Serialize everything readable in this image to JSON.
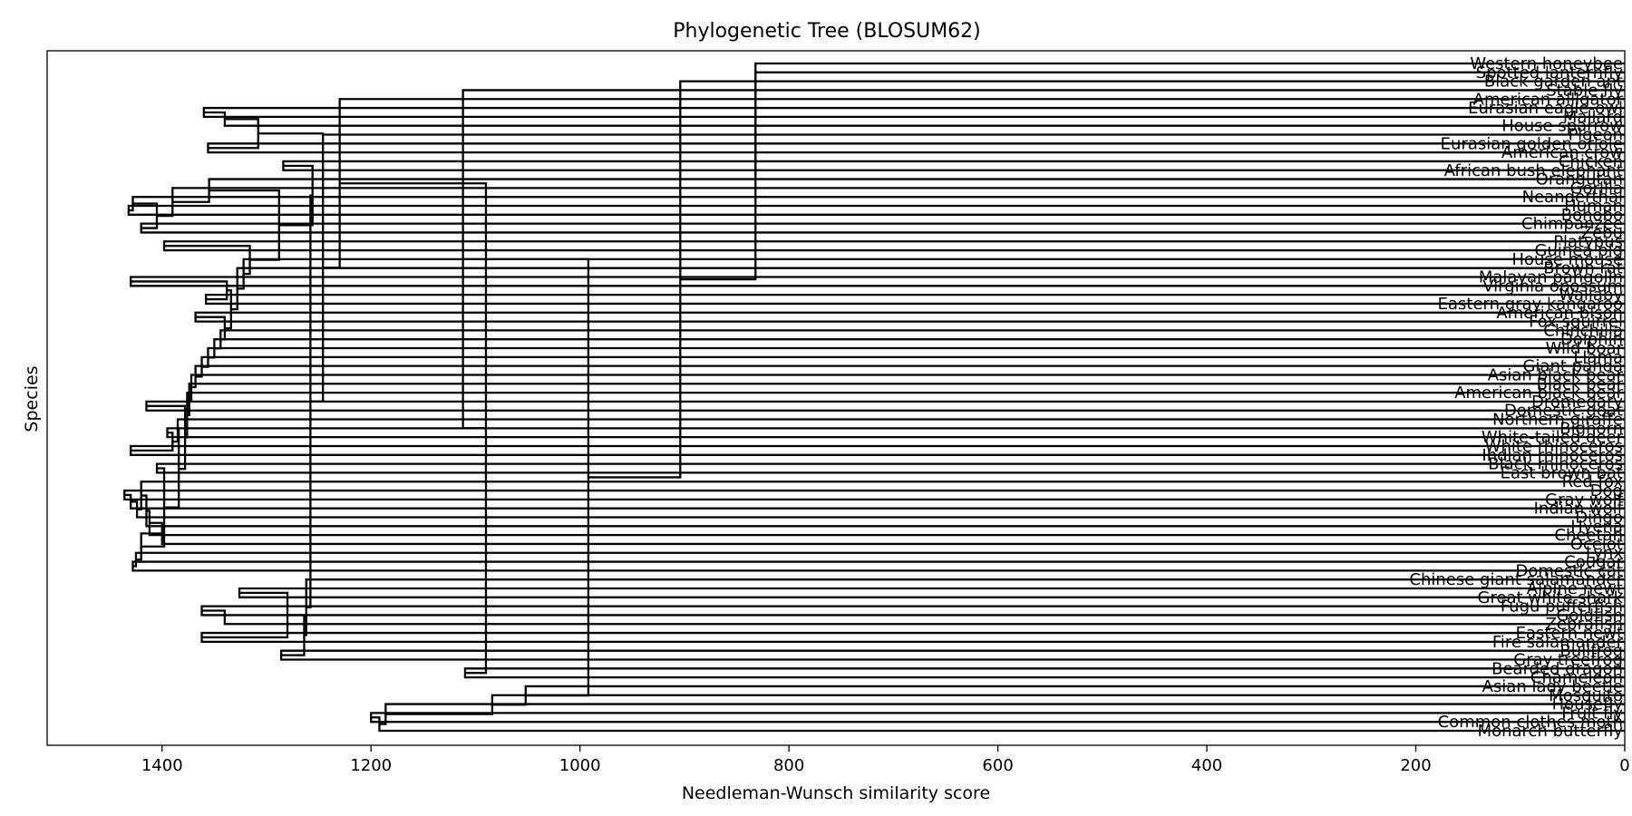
{
  "chart_data": {
    "type": "dendrogram",
    "title": "Phylogenetic Tree (BLOSUM62)",
    "xlabel": "Needleman-Wunsch similarity score",
    "ylabel": "Species",
    "xlim": [
      1510,
      0
    ],
    "x_ticks": [
      1400,
      1200,
      1000,
      800,
      600,
      400,
      200,
      0
    ],
    "orientation": "leaves-right",
    "leaves": [
      "Western honeybee",
      "Spotted lanternfly",
      "Black garden ant",
      "Stable fly",
      "American alligator",
      "Eurasian eagle-owl",
      "Mallard",
      "House sparrow",
      "Pigeon",
      "Eurasian golden oriole",
      "American crow",
      "Chicken",
      "African bush elephant",
      "Orangutan",
      "Gorilla",
      "Neanderthal",
      "Human",
      "Bonobo",
      "Chimpanzee",
      "Zebu",
      "Platypus",
      "Guinea pig",
      "House mouse",
      "Brown rat",
      "Malayan pangolin",
      "Virginia opossum",
      "Wallaby",
      "Eastern gray kangaroo",
      "American bison",
      "Fox squirrel",
      "Chinchilla",
      "Dolphin",
      "Wild boar",
      "Llama",
      "Giant panda",
      "Asian black bear",
      "Black bear",
      "American black bear",
      "Dromedary",
      "Domestic goat",
      "Northern giraffe",
      "Bighorn",
      "White-tailed deer",
      "White rhinoceros",
      "Indian rhinoceros",
      "Black rhinoceros",
      "East brown bat",
      "Red fox",
      "Dog",
      "Gray wolf",
      "Indian wolf",
      "Dingo",
      "Hyena",
      "Cheetah",
      "Ocelot",
      "Lynx",
      "Cougar",
      "Domestic cat",
      "Chinese giant salamander",
      "Alpine newt",
      "Great white shark",
      "Fugu pufferfish",
      "Goldfish",
      "Zebrafish",
      "Eastern newt",
      "Fire salamander",
      "Bullfrog",
      "Gray treefrog",
      "Bearded dragon",
      "Chameleon",
      "Asian lady beetle",
      "Mosquito",
      "Housefly",
      "Fruit fly",
      "Common clothes moth",
      "Monarch butterfly"
    ],
    "merges": [
      {
        "a": "Human",
        "b": "Bonobo",
        "score": 1432
      },
      {
        "a": "Chimpanzee",
        "b": "Zebu",
        "score": 1420
      },
      {
        "a": "Neanderthal",
        "b": "m1",
        "score": 1428
      },
      {
        "a": "m3",
        "b": "m2",
        "score": 1405
      },
      {
        "a": "Gorilla",
        "b": "m4",
        "score": 1390
      },
      {
        "a": "Orangutan",
        "b": "m5",
        "score": 1355
      },
      {
        "a": "Dog",
        "b": "Gray wolf",
        "score": 1436
      },
      {
        "a": "m7",
        "b": "Indian wolf",
        "score": 1430
      },
      {
        "a": "m8",
        "b": "Dingo",
        "score": 1424
      },
      {
        "a": "Red fox",
        "b": "m9",
        "score": 1420
      },
      {
        "a": "m10",
        "b": "Hyena",
        "score": 1415
      },
      {
        "a": "m11",
        "b": "Cheetah",
        "score": 1412
      },
      {
        "a": "m12",
        "b": "Ocelot",
        "score": 1400
      },
      {
        "a": "Cougar",
        "b": "Domestic cat",
        "score": 1428
      },
      {
        "a": "Lynx",
        "b": "m14",
        "score": 1425
      },
      {
        "a": "m13",
        "b": "m15",
        "score": 1420
      },
      {
        "a": "Black rhinoceros",
        "b": "East brown bat",
        "score": 1405
      },
      {
        "a": "m17",
        "b": "m16",
        "score": 1398
      },
      {
        "a": "White rhinoceros",
        "b": "Indian rhinoceros",
        "score": 1430
      },
      {
        "a": "Bighorn",
        "b": "White-tailed deer",
        "score": 1395
      },
      {
        "a": "m20",
        "b": "m19",
        "score": 1390
      },
      {
        "a": "Northern giraffe",
        "b": "m21",
        "score": 1385
      },
      {
        "a": "m22",
        "b": "m18",
        "score": 1384
      },
      {
        "a": "Dromedary",
        "b": "Domestic goat",
        "score": 1415
      },
      {
        "a": "m24",
        "b": "m23",
        "score": 1378
      },
      {
        "a": "American black bear",
        "b": "m25",
        "score": 1376
      },
      {
        "a": "Black bear",
        "b": "m26",
        "score": 1374
      },
      {
        "a": "Asian black bear",
        "b": "m27",
        "score": 1372
      },
      {
        "a": "Giant panda",
        "b": "m28",
        "score": 1368
      },
      {
        "a": "Llama",
        "b": "m29",
        "score": 1362
      },
      {
        "a": "Wild boar",
        "b": "m30",
        "score": 1356
      },
      {
        "a": "Dolphin",
        "b": "m31",
        "score": 1350
      },
      {
        "a": "Chinchilla",
        "b": "m32",
        "score": 1344
      },
      {
        "a": "American bison",
        "b": "Fox squirrel",
        "score": 1368
      },
      {
        "a": "m34",
        "b": "m33",
        "score": 1340
      },
      {
        "a": "Malayan pangolin",
        "b": "Virginia opossum",
        "score": 1430
      },
      {
        "a": "Wallaby",
        "b": "Eastern gray kangaroo",
        "score": 1358
      },
      {
        "a": "m36",
        "b": "m37",
        "score": 1338
      },
      {
        "a": "m38",
        "b": "m35",
        "score": 1334
      },
      {
        "a": "Brown rat",
        "b": "m39",
        "score": 1328
      },
      {
        "a": "House mouse",
        "b": "m40",
        "score": 1322
      },
      {
        "a": "Platypus",
        "b": "Guinea pig",
        "score": 1398
      },
      {
        "a": "m42",
        "b": "m41",
        "score": 1316
      },
      {
        "a": "m6",
        "b": "m43",
        "score": 1288
      },
      {
        "a": "Eurasian eagle-owl",
        "b": "Mallard",
        "score": 1360
      },
      {
        "a": "m45",
        "b": "House sparrow",
        "score": 1340
      },
      {
        "a": "Eurasian golden oriole",
        "b": "American crow",
        "score": 1356
      },
      {
        "a": "m46",
        "b": "m47",
        "score": 1308
      },
      {
        "a": "m48",
        "b": "Pigeon",
        "score": 1246
      },
      {
        "a": "Chicken",
        "b": "African bush elephant",
        "score": 1284
      },
      {
        "a": "m44",
        "b": "m50",
        "score": 1256
      },
      {
        "a": "Fugu pufferfish",
        "b": "Goldfish",
        "score": 1362
      },
      {
        "a": "m52",
        "b": "Zebrafish",
        "score": 1340
      },
      {
        "a": "Alpine newt",
        "b": "Great white shark",
        "score": 1326
      },
      {
        "a": "Eastern newt",
        "b": "Fire salamander",
        "score": 1362
      },
      {
        "a": "m55",
        "b": "m54",
        "score": 1280
      },
      {
        "a": "Bullfrog",
        "b": "Gray treefrog",
        "score": 1286
      },
      {
        "a": "m56",
        "b": "m57",
        "score": 1264
      },
      {
        "a": "Chinese giant salamander",
        "b": "m58",
        "score": 1262
      },
      {
        "a": "m51",
        "b": "m59",
        "score": 1258
      },
      {
        "a": "m49",
        "b": "m60",
        "score": 1246
      },
      {
        "a": "American alligator",
        "b": "m61",
        "score": 1230
      },
      {
        "a": "Bearded dragon",
        "b": "Chameleon",
        "score": 1110
      },
      {
        "a": "m62",
        "b": "m63",
        "score": 1090
      },
      {
        "a": "Stable fly",
        "b": "m64",
        "score": 1112
      },
      {
        "a": "Fruit fly",
        "b": "Common clothes moth",
        "score": 1200
      },
      {
        "a": "m66",
        "b": "Monarch butterfly",
        "score": 1192
      },
      {
        "a": "Housefly",
        "b": "m67",
        "score": 1186
      },
      {
        "a": "Mosquito",
        "b": "m68",
        "score": 1084
      },
      {
        "a": "Asian lady beetle",
        "b": "m69",
        "score": 1052
      },
      {
        "a": "m65",
        "b": "m70",
        "score": 992
      },
      {
        "a": "Black garden ant",
        "b": "m71",
        "score": 904
      },
      {
        "a": "Spotted lanternfly",
        "b": "m72",
        "score": 832
      },
      {
        "a": "Western honeybee",
        "b": "m73",
        "score": 832
      }
    ]
  }
}
